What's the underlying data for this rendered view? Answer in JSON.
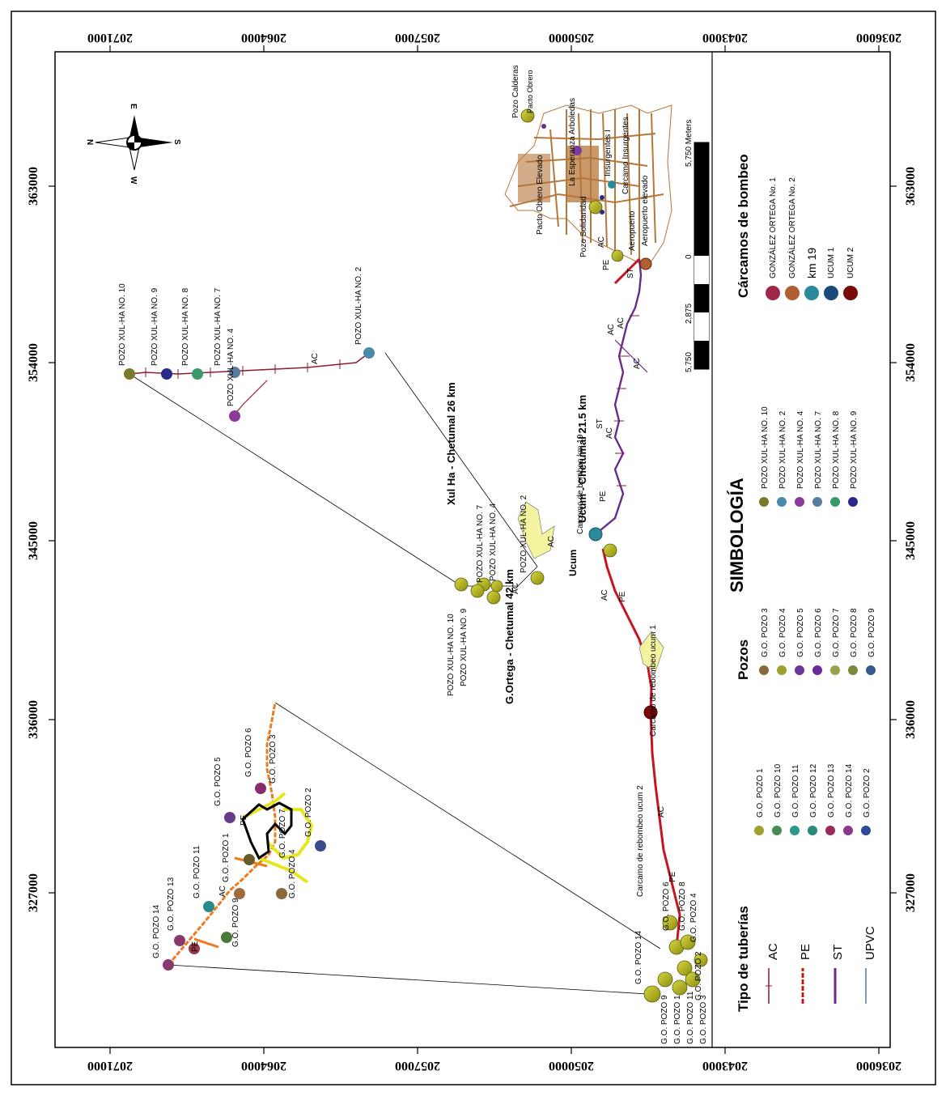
{
  "frame_ticks": {
    "top": [
      "2071000",
      "2064000",
      "2057000",
      "2050000",
      "2043000",
      "2036000"
    ],
    "bottom": [
      "2071000",
      "2064000",
      "2057000",
      "2050000",
      "2043000",
      "2036000"
    ],
    "left": [
      "327000",
      "336000",
      "345000",
      "354000",
      "363000"
    ],
    "right": [
      "327000",
      "336000",
      "345000",
      "354000",
      "363000"
    ]
  },
  "compass": {
    "n": "N",
    "s": "S",
    "e": "E",
    "w": "W"
  },
  "routes": {
    "xul_ha": "Xul Ha - Chetumal 26 km",
    "ucum": "Ucum - Chetumal 21.5 km",
    "gortega": "G.Ortega - Chetumal  42 km"
  },
  "labels": {
    "pozo_calderas": "Pozo Calderas",
    "pacto_obrero": "Pacto Obrero",
    "pacto_obrero_elevado": "Pacto Obrero Elevado",
    "la_esperanza": "La Esperanza Arboledas",
    "pozo_solidaridad": "Pozo Solidaridad",
    "insurgentes_i": "Insurgentes I",
    "carcamo_insurgentes": "Carcamo Insurgentes",
    "aeropuerto": "Aeropuerto",
    "aeropuerto_elevado": "Aeropuerto elevado",
    "carcamo_km19": "Carcamo de bombeo km 19",
    "ucum_city": "Ucum",
    "rebombeo_ucum1": "Carcamo de rebombeo ucum 1",
    "rebombeo_ucum2": "Carcamo de rebombeo ucum 2"
  },
  "xul_wells_field": [
    "POZO XUL-HA NO. 10",
    "POZO XUL-HA NO. 9",
    "POZO XUL-HA NO. 8",
    "POZO XUL-HA NO. 7",
    "POZO XUL-HA NO. 4",
    "POZO XUL-HA NO. 2"
  ],
  "xul_wells_inset": [
    "POZO XUL-HA NO. 10",
    "POZO XUL-HA NO. 9",
    "POZO XUL-HA NO. 7",
    "POZO XUL-HA NO. 4",
    "POZO XUL-HA NO. 2"
  ],
  "go_field": [
    "G.O. POZO 14",
    "G.O. POZO 13",
    "G.O. POZO 11",
    "G.O. POZO 9",
    "G.O. POZO 1",
    "G.O. POZO 4",
    "G.O. POZO 5",
    "G.O. POZO 6",
    "G.O. POZO 3",
    "G.O. POZO 7",
    "G.O. POZO 2"
  ],
  "go_inset": [
    "G.O. POZO 14",
    "G.O. POZO 6",
    "G.O. POZO 4",
    "G.O. POZO 8",
    "G.O. POZO 9",
    "G.O. POZO 1",
    "G.O. POZO 11",
    "G.O. POZO 3",
    "G.O. POZO 2"
  ],
  "pipe_codes": {
    "ac": "AC",
    "pe": "PE",
    "st": "ST"
  },
  "scalebar": {
    "l1": "5,750",
    "l2": "2,875",
    "l3": "0",
    "l4": "5,750 Meters"
  },
  "legend": {
    "title": "SIMBOLOGÍA",
    "tuberias_title": "Tipo de tuberías",
    "tuberias": [
      "AC",
      "PE",
      "ST",
      "UPVC"
    ],
    "pozos_title": "Pozos",
    "carcamos_title": "Cárcamos de bombeo",
    "col1": [
      "G.O. POZO 1",
      "G.O. POZO 10",
      "G.O. POZO 11",
      "G.O. POZO 12",
      "G.O. POZO 13",
      "G.O. POZO 14",
      "G.O. POZO 2"
    ],
    "col2": [
      "G.O. POZO 3",
      "G.O. POZO 4",
      "G.O. POZO 5",
      "G.O. POZO 6",
      "G.O. POZO 7",
      "G.O. POZO 8",
      "G.O. POZO 9"
    ],
    "col3": [
      "POZO XUL-HA NO. 10",
      "POZO XUL-HA NO. 2",
      "POZO XUL-HA NO. 4",
      "POZO XUL-HA NO. 7",
      "POZO XUL-HA NO. 8",
      "POZO XUL-HA NO. 9"
    ],
    "col4": [
      "GONZÁLEZ ORTEGA No. 1",
      "GONZÁLEZ ORTEGA No. 2",
      "km 19",
      "UCUM 1",
      "UCUM 2"
    ]
  },
  "colors": {
    "pipe_ac": "#8b1c2c",
    "pipe_pe": "#c8141e",
    "pipe_st": "#6a2a8c",
    "pipe_upvc": "#5a7aa0",
    "field_pe": "#f07a1e",
    "field_yellow": "#e6e61e",
    "city": "#b5773a",
    "olive": "#a0a020"
  }
}
